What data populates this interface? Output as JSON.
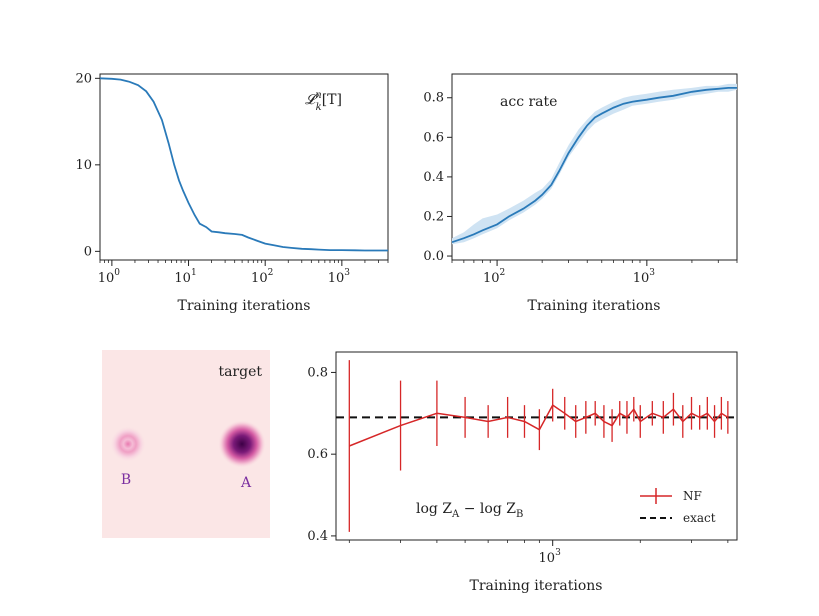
{
  "chart_data": [
    {
      "id": "loss",
      "type": "line",
      "xscale": "log",
      "xlim": [
        0.7,
        4000
      ],
      "ylim": [
        -1,
        20.5
      ],
      "yticks": [
        0,
        10,
        20
      ],
      "ytick_labels": [
        "0",
        "10",
        "20"
      ],
      "xticks": [
        1,
        10,
        100,
        1000
      ],
      "xtick_labels": [
        "10",
        "10",
        "10",
        "10"
      ],
      "xtick_exps": [
        "0",
        "1",
        "2",
        "3"
      ],
      "xlabel": "Training iterations",
      "annotation": "𝓛",
      "annotation_sub": "k",
      "annotation_sup": "n",
      "annotation_tail": "[T]",
      "series": [
        {
          "color": "#2a7ab9",
          "x": [
            0.7,
            1,
            1.3,
            1.7,
            2.2,
            2.8,
            3.5,
            4.5,
            5.5,
            6.5,
            7.5,
            8.5,
            10,
            12,
            14,
            17,
            20,
            25,
            30,
            40,
            50,
            60,
            80,
            100,
            130,
            170,
            220,
            300,
            400,
            500,
            700,
            1000,
            1500,
            2000,
            3000,
            4000
          ],
          "y": [
            20,
            19.95,
            19.85,
            19.6,
            19.2,
            18.5,
            17.3,
            15.2,
            12.5,
            10,
            8.2,
            7,
            5.6,
            4.2,
            3.2,
            2.8,
            2.3,
            2.2,
            2.1,
            2,
            1.9,
            1.6,
            1.2,
            0.9,
            0.7,
            0.5,
            0.4,
            0.3,
            0.25,
            0.2,
            0.15,
            0.15,
            0.12,
            0.1,
            0.1,
            0.1
          ]
        }
      ]
    },
    {
      "id": "acc",
      "type": "line",
      "xscale": "log",
      "xlim": [
        50,
        4000
      ],
      "ylim": [
        -0.02,
        0.92
      ],
      "yticks": [
        0,
        0.2,
        0.4,
        0.6,
        0.8
      ],
      "ytick_labels": [
        "0.0",
        "0.2",
        "0.4",
        "0.6",
        "0.8"
      ],
      "xticks": [
        100,
        1000
      ],
      "xtick_labels": [
        "10",
        "10"
      ],
      "xtick_exps": [
        "2",
        "3"
      ],
      "xlabel": "Training iterations",
      "annotation": "acc rate",
      "band_color": "#cfe3f3",
      "series": [
        {
          "color": "#2a7ab9",
          "x": [
            50,
            60,
            70,
            80,
            100,
            120,
            150,
            180,
            200,
            230,
            260,
            300,
            350,
            400,
            450,
            500,
            600,
            700,
            800,
            1000,
            1200,
            1500,
            2000,
            2500,
            3000,
            3500,
            4000
          ],
          "y": [
            0.07,
            0.09,
            0.11,
            0.13,
            0.16,
            0.2,
            0.24,
            0.28,
            0.31,
            0.36,
            0.43,
            0.52,
            0.6,
            0.66,
            0.7,
            0.72,
            0.75,
            0.77,
            0.78,
            0.79,
            0.8,
            0.81,
            0.83,
            0.84,
            0.845,
            0.85,
            0.85
          ],
          "band_lo": [
            0.06,
            0.07,
            0.09,
            0.11,
            0.14,
            0.18,
            0.22,
            0.26,
            0.29,
            0.34,
            0.41,
            0.5,
            0.57,
            0.63,
            0.67,
            0.69,
            0.72,
            0.74,
            0.76,
            0.77,
            0.78,
            0.79,
            0.81,
            0.82,
            0.83,
            0.83,
            0.84
          ],
          "band_hi": [
            0.09,
            0.12,
            0.16,
            0.19,
            0.21,
            0.24,
            0.28,
            0.32,
            0.34,
            0.39,
            0.47,
            0.56,
            0.64,
            0.69,
            0.73,
            0.75,
            0.78,
            0.8,
            0.81,
            0.82,
            0.83,
            0.84,
            0.85,
            0.86,
            0.86,
            0.87,
            0.87
          ]
        }
      ]
    },
    {
      "id": "target",
      "type": "heatmap",
      "annotation": "target",
      "background": "#fbe6e6",
      "modes": [
        {
          "label": "B",
          "color": "#e48ab6",
          "inner": "#f3a9c9",
          "strength": 0.5,
          "label_color": "#7b2fa0"
        },
        {
          "label": "A",
          "color": "#5a0a5a",
          "inner": "#3d0046",
          "strength": 1.0,
          "label_color": "#7b2fa0"
        }
      ]
    },
    {
      "id": "logz",
      "type": "errorbar",
      "xscale": "log",
      "xlim": [
        180,
        4300
      ],
      "ylim": [
        0.39,
        0.85
      ],
      "yticks": [
        0.4,
        0.6,
        0.8
      ],
      "ytick_labels": [
        "0.4",
        "0.6",
        "0.8"
      ],
      "xticks": [
        1000
      ],
      "xtick_labels": [
        "10"
      ],
      "xtick_exps": [
        "3"
      ],
      "xlabel": "Training iterations",
      "annotation": "log Z",
      "annotation_sub1": "A",
      "annotation_mid": " − log Z",
      "annotation_sub2": "B",
      "exact": 0.69,
      "series": [
        {
          "name": "NF",
          "color": "#d62728",
          "x": [
            200,
            300,
            400,
            500,
            600,
            700,
            800,
            900,
            1000,
            1100,
            1200,
            1300,
            1400,
            1500,
            1600,
            1700,
            1800,
            1900,
            2000,
            2200,
            2400,
            2600,
            2800,
            3000,
            3200,
            3400,
            3600,
            3800,
            4000
          ],
          "y": [
            0.62,
            0.67,
            0.7,
            0.69,
            0.68,
            0.69,
            0.68,
            0.66,
            0.72,
            0.7,
            0.68,
            0.69,
            0.7,
            0.68,
            0.67,
            0.7,
            0.69,
            0.71,
            0.68,
            0.7,
            0.69,
            0.71,
            0.68,
            0.7,
            0.69,
            0.7,
            0.68,
            0.7,
            0.69
          ],
          "err": [
            0.21,
            0.11,
            0.08,
            0.05,
            0.04,
            0.05,
            0.04,
            0.05,
            0.04,
            0.04,
            0.04,
            0.04,
            0.03,
            0.04,
            0.04,
            0.03,
            0.04,
            0.03,
            0.04,
            0.03,
            0.04,
            0.04,
            0.04,
            0.04,
            0.03,
            0.04,
            0.04,
            0.04,
            0.04
          ]
        },
        {
          "name": "exact",
          "color": "#111111",
          "style": "dashed"
        }
      ]
    }
  ]
}
